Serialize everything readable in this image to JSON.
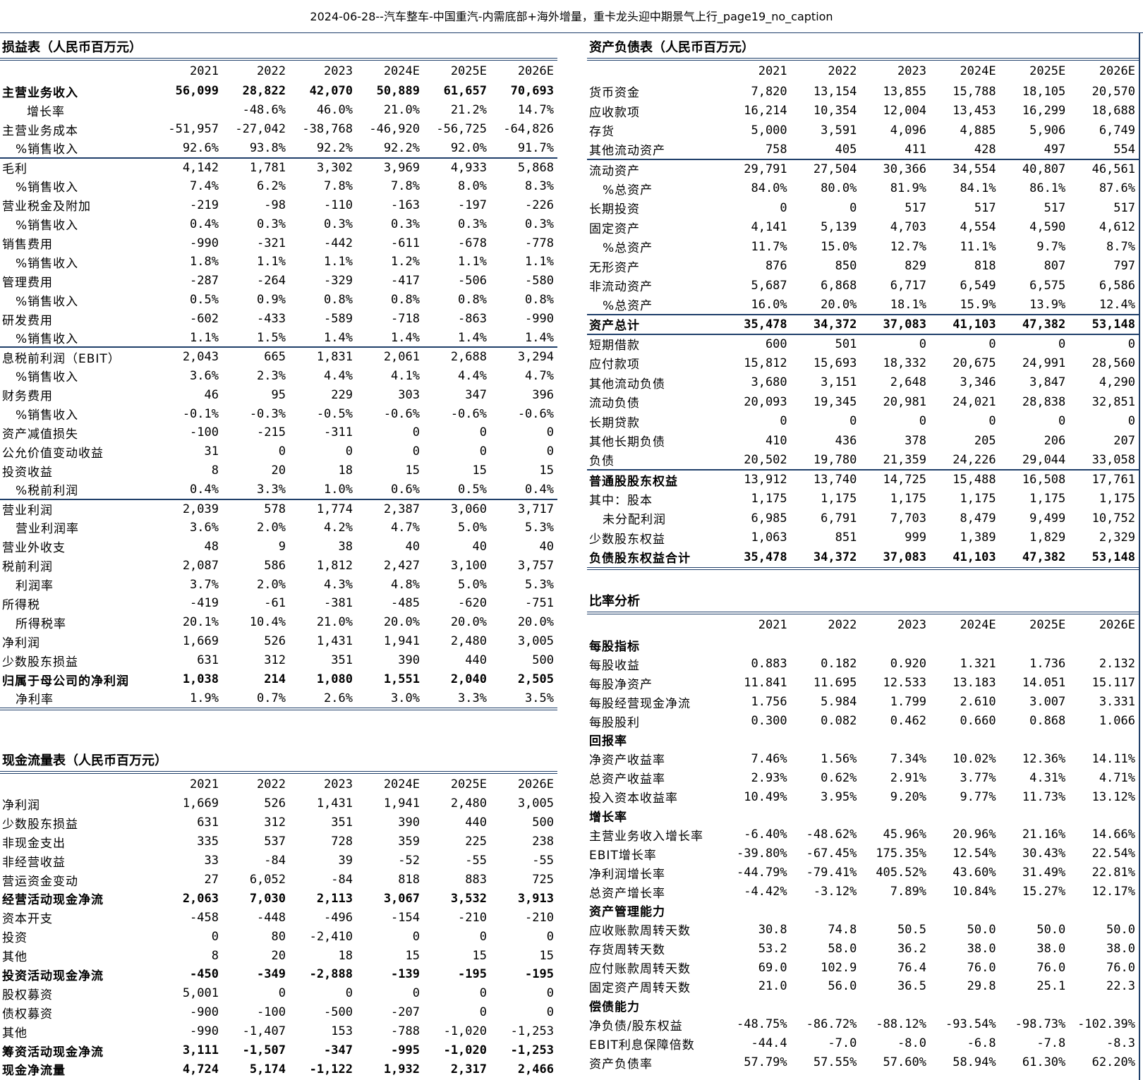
{
  "page_title": "2024-06-28--汽车整车-中国重汽-内需底部+海外增量，重卡龙头迎中期景气上行_page19_no_caption",
  "years": [
    "2021",
    "2022",
    "2023",
    "2024E",
    "2025E",
    "2026E"
  ],
  "income": {
    "title": "损益表（人民币百万元）",
    "rows": [
      {
        "label": "主营业务收入",
        "values": [
          "56,099",
          "28,822",
          "42,070",
          "50,889",
          "61,657",
          "70,693"
        ],
        "style": "b"
      },
      {
        "label": "增长率",
        "values": [
          "",
          "-48.6%",
          "46.0%",
          "21.0%",
          "21.2%",
          "14.7%"
        ],
        "style": "ii"
      },
      {
        "label": "主营业务成本",
        "values": [
          "-51,957",
          "-27,042",
          "-38,768",
          "-46,920",
          "-56,725",
          "-64,826"
        ],
        "style": ""
      },
      {
        "label": "%销售收入",
        "values": [
          "92.6%",
          "93.8%",
          "92.2%",
          "92.2%",
          "92.0%",
          "91.7%"
        ],
        "style": "i"
      },
      {
        "label": "毛利",
        "values": [
          "4,142",
          "1,781",
          "3,302",
          "3,969",
          "4,933",
          "5,868"
        ],
        "style": "sep"
      },
      {
        "label": "%销售收入",
        "values": [
          "7.4%",
          "6.2%",
          "7.8%",
          "7.8%",
          "8.0%",
          "8.3%"
        ],
        "style": "i"
      },
      {
        "label": "营业税金及附加",
        "values": [
          "-219",
          "-98",
          "-110",
          "-163",
          "-197",
          "-226"
        ],
        "style": ""
      },
      {
        "label": "%销售收入",
        "values": [
          "0.4%",
          "0.3%",
          "0.3%",
          "0.3%",
          "0.3%",
          "0.3%"
        ],
        "style": "i"
      },
      {
        "label": "销售费用",
        "values": [
          "-990",
          "-321",
          "-442",
          "-611",
          "-678",
          "-778"
        ],
        "style": ""
      },
      {
        "label": "%销售收入",
        "values": [
          "1.8%",
          "1.1%",
          "1.1%",
          "1.2%",
          "1.1%",
          "1.1%"
        ],
        "style": "i"
      },
      {
        "label": "管理费用",
        "values": [
          "-287",
          "-264",
          "-329",
          "-417",
          "-506",
          "-580"
        ],
        "style": ""
      },
      {
        "label": "%销售收入",
        "values": [
          "0.5%",
          "0.9%",
          "0.8%",
          "0.8%",
          "0.8%",
          "0.8%"
        ],
        "style": "i"
      },
      {
        "label": "研发费用",
        "values": [
          "-602",
          "-433",
          "-589",
          "-718",
          "-863",
          "-990"
        ],
        "style": ""
      },
      {
        "label": "%销售收入",
        "values": [
          "1.1%",
          "1.5%",
          "1.4%",
          "1.4%",
          "1.4%",
          "1.4%"
        ],
        "style": "i"
      },
      {
        "label": "息税前利润（EBIT）",
        "values": [
          "2,043",
          "665",
          "1,831",
          "2,061",
          "2,688",
          "3,294"
        ],
        "style": "sep"
      },
      {
        "label": "%销售收入",
        "values": [
          "3.6%",
          "2.3%",
          "4.4%",
          "4.1%",
          "4.4%",
          "4.7%"
        ],
        "style": "i"
      },
      {
        "label": "财务费用",
        "values": [
          "46",
          "95",
          "229",
          "303",
          "347",
          "396"
        ],
        "style": ""
      },
      {
        "label": "%销售收入",
        "values": [
          "-0.1%",
          "-0.3%",
          "-0.5%",
          "-0.6%",
          "-0.6%",
          "-0.6%"
        ],
        "style": "i"
      },
      {
        "label": "资产减值损失",
        "values": [
          "-100",
          "-215",
          "-311",
          "0",
          "0",
          "0"
        ],
        "style": ""
      },
      {
        "label": "公允价值变动收益",
        "values": [
          "31",
          "0",
          "0",
          "0",
          "0",
          "0"
        ],
        "style": ""
      },
      {
        "label": "投资收益",
        "values": [
          "8",
          "20",
          "18",
          "15",
          "15",
          "15"
        ],
        "style": ""
      },
      {
        "label": "%税前利润",
        "values": [
          "0.4%",
          "3.3%",
          "1.0%",
          "0.6%",
          "0.5%",
          "0.4%"
        ],
        "style": "i"
      },
      {
        "label": "营业利润",
        "values": [
          "2,039",
          "578",
          "1,774",
          "2,387",
          "3,060",
          "3,717"
        ],
        "style": "sep"
      },
      {
        "label": "营业利润率",
        "values": [
          "3.6%",
          "2.0%",
          "4.2%",
          "4.7%",
          "5.0%",
          "5.3%"
        ],
        "style": "i"
      },
      {
        "label": "营业外收支",
        "values": [
          "48",
          "9",
          "38",
          "40",
          "40",
          "40"
        ],
        "style": ""
      },
      {
        "label": "税前利润",
        "values": [
          "2,087",
          "586",
          "1,812",
          "2,427",
          "3,100",
          "3,757"
        ],
        "style": ""
      },
      {
        "label": "利润率",
        "values": [
          "3.7%",
          "2.0%",
          "4.3%",
          "4.8%",
          "5.0%",
          "5.3%"
        ],
        "style": "i"
      },
      {
        "label": "所得税",
        "values": [
          "-419",
          "-61",
          "-381",
          "-485",
          "-620",
          "-751"
        ],
        "style": ""
      },
      {
        "label": "所得税率",
        "values": [
          "20.1%",
          "10.4%",
          "21.0%",
          "20.0%",
          "20.0%",
          "20.0%"
        ],
        "style": "i"
      },
      {
        "label": "净利润",
        "values": [
          "1,669",
          "526",
          "1,431",
          "1,941",
          "2,480",
          "3,005"
        ],
        "style": ""
      },
      {
        "label": "少数股东损益",
        "values": [
          "631",
          "312",
          "351",
          "390",
          "440",
          "500"
        ],
        "style": ""
      },
      {
        "label": "归属于母公司的净利润",
        "values": [
          "1,038",
          "214",
          "1,080",
          "1,551",
          "2,040",
          "2,505"
        ],
        "style": "b"
      },
      {
        "label": "净利率",
        "values": [
          "1.9%",
          "0.7%",
          "2.6%",
          "3.0%",
          "3.3%",
          "3.5%"
        ],
        "style": "i"
      }
    ]
  },
  "cashflow": {
    "title": "现金流量表（人民币百万元）",
    "rows": [
      {
        "label": "净利润",
        "values": [
          "1,669",
          "526",
          "1,431",
          "1,941",
          "2,480",
          "3,005"
        ],
        "style": ""
      },
      {
        "label": "少数股东损益",
        "values": [
          "631",
          "312",
          "351",
          "390",
          "440",
          "500"
        ],
        "style": ""
      },
      {
        "label": "非现金支出",
        "values": [
          "335",
          "537",
          "728",
          "359",
          "225",
          "238"
        ],
        "style": ""
      },
      {
        "label": "非经营收益",
        "values": [
          "33",
          "-84",
          "39",
          "-52",
          "-55",
          "-55"
        ],
        "style": ""
      },
      {
        "label": "营运资金变动",
        "values": [
          "27",
          "6,052",
          "-84",
          "818",
          "883",
          "725"
        ],
        "style": ""
      },
      {
        "label": "经营活动现金净流",
        "values": [
          "2,063",
          "7,030",
          "2,113",
          "3,067",
          "3,532",
          "3,913"
        ],
        "style": "b"
      },
      {
        "label": "资本开支",
        "values": [
          "-458",
          "-448",
          "-496",
          "-154",
          "-210",
          "-210"
        ],
        "style": ""
      },
      {
        "label": "投资",
        "values": [
          "0",
          "80",
          "-2,410",
          "0",
          "0",
          "0"
        ],
        "style": ""
      },
      {
        "label": "其他",
        "values": [
          "8",
          "20",
          "18",
          "15",
          "15",
          "15"
        ],
        "style": ""
      },
      {
        "label": "投资活动现金净流",
        "values": [
          "-450",
          "-349",
          "-2,888",
          "-139",
          "-195",
          "-195"
        ],
        "style": "b"
      },
      {
        "label": "股权募资",
        "values": [
          "5,001",
          "0",
          "0",
          "0",
          "0",
          "0"
        ],
        "style": ""
      },
      {
        "label": "债权募资",
        "values": [
          "-900",
          "-100",
          "-500",
          "-207",
          "0",
          "0"
        ],
        "style": ""
      },
      {
        "label": "其他",
        "values": [
          "-990",
          "-1,407",
          "153",
          "-788",
          "-1,020",
          "-1,253"
        ],
        "style": ""
      },
      {
        "label": "筹资活动现金净流",
        "values": [
          "3,111",
          "-1,507",
          "-347",
          "-995",
          "-1,020",
          "-1,253"
        ],
        "style": "b"
      },
      {
        "label": "现金净流量",
        "values": [
          "4,724",
          "5,174",
          "-1,122",
          "1,932",
          "2,317",
          "2,466"
        ],
        "style": "b"
      }
    ]
  },
  "balance": {
    "title": "资产负债表（人民币百万元）",
    "rows": [
      {
        "label": "货币资金",
        "values": [
          "7,820",
          "13,154",
          "13,855",
          "15,788",
          "18,105",
          "20,570"
        ],
        "style": ""
      },
      {
        "label": "应收款项",
        "values": [
          "16,214",
          "10,354",
          "12,004",
          "13,453",
          "16,299",
          "18,688"
        ],
        "style": ""
      },
      {
        "label": "存货",
        "values": [
          "5,000",
          "3,591",
          "4,096",
          "4,885",
          "5,906",
          "6,749"
        ],
        "style": ""
      },
      {
        "label": "其他流动资产",
        "values": [
          "758",
          "405",
          "411",
          "428",
          "497",
          "554"
        ],
        "style": ""
      },
      {
        "label": "流动资产",
        "values": [
          "29,791",
          "27,504",
          "30,366",
          "34,554",
          "40,807",
          "46,561"
        ],
        "style": "sep"
      },
      {
        "label": "%总资产",
        "values": [
          "84.0%",
          "80.0%",
          "81.9%",
          "84.1%",
          "86.1%",
          "87.6%"
        ],
        "style": "i"
      },
      {
        "label": "长期投资",
        "values": [
          "0",
          "0",
          "517",
          "517",
          "517",
          "517"
        ],
        "style": ""
      },
      {
        "label": "固定资产",
        "values": [
          "4,141",
          "5,139",
          "4,703",
          "4,554",
          "4,590",
          "4,612"
        ],
        "style": ""
      },
      {
        "label": "%总资产",
        "values": [
          "11.7%",
          "15.0%",
          "12.7%",
          "11.1%",
          "9.7%",
          "8.7%"
        ],
        "style": "i"
      },
      {
        "label": "无形资产",
        "values": [
          "876",
          "850",
          "829",
          "818",
          "807",
          "797"
        ],
        "style": ""
      },
      {
        "label": "非流动资产",
        "values": [
          "5,687",
          "6,868",
          "6,717",
          "6,549",
          "6,575",
          "6,586"
        ],
        "style": ""
      },
      {
        "label": "%总资产",
        "values": [
          "16.0%",
          "20.0%",
          "18.1%",
          "15.9%",
          "13.9%",
          "12.4%"
        ],
        "style": "i"
      },
      {
        "label": "资产总计",
        "values": [
          "35,478",
          "34,372",
          "37,083",
          "41,103",
          "47,382",
          "53,148"
        ],
        "style": "b sep"
      },
      {
        "label": "短期借款",
        "values": [
          "600",
          "501",
          "0",
          "0",
          "0",
          "0"
        ],
        "style": "sep"
      },
      {
        "label": "应付款项",
        "values": [
          "15,812",
          "15,693",
          "18,332",
          "20,675",
          "24,991",
          "28,560"
        ],
        "style": ""
      },
      {
        "label": "其他流动负债",
        "values": [
          "3,680",
          "3,151",
          "2,648",
          "3,346",
          "3,847",
          "4,290"
        ],
        "style": ""
      },
      {
        "label": "流动负债",
        "values": [
          "20,093",
          "19,345",
          "20,981",
          "24,021",
          "28,838",
          "32,851"
        ],
        "style": ""
      },
      {
        "label": "长期贷款",
        "values": [
          "0",
          "0",
          "0",
          "0",
          "0",
          "0"
        ],
        "style": ""
      },
      {
        "label": "其他长期负债",
        "values": [
          "410",
          "436",
          "378",
          "205",
          "206",
          "207"
        ],
        "style": ""
      },
      {
        "label": "负债",
        "values": [
          "20,502",
          "19,780",
          "21,359",
          "24,226",
          "29,044",
          "33,058"
        ],
        "style": ""
      },
      {
        "label": "普通股股东权益",
        "values": [
          "13,912",
          "13,740",
          "14,725",
          "15,488",
          "16,508",
          "17,761"
        ],
        "style": "grp sep"
      },
      {
        "label": "其中：股本",
        "values": [
          "1,175",
          "1,175",
          "1,175",
          "1,175",
          "1,175",
          "1,175"
        ],
        "style": ""
      },
      {
        "label": "未分配利润",
        "values": [
          "6,985",
          "6,791",
          "7,703",
          "8,479",
          "9,499",
          "10,752"
        ],
        "style": "i"
      },
      {
        "label": "少数股东权益",
        "values": [
          "1,063",
          "851",
          "999",
          "1,389",
          "1,829",
          "2,329"
        ],
        "style": ""
      },
      {
        "label": "负债股东权益合计",
        "values": [
          "35,478",
          "34,372",
          "37,083",
          "41,103",
          "47,382",
          "53,148"
        ],
        "style": "b"
      }
    ]
  },
  "ratios": {
    "title": "比率分析",
    "rows": [
      {
        "label": "每股指标",
        "values": [
          "",
          "",
          "",
          "",
          "",
          ""
        ],
        "style": "grp"
      },
      {
        "label": "每股收益",
        "values": [
          "0.883",
          "0.182",
          "0.920",
          "1.321",
          "1.736",
          "2.132"
        ],
        "style": ""
      },
      {
        "label": "每股净资产",
        "values": [
          "11.841",
          "11.695",
          "12.533",
          "13.183",
          "14.051",
          "15.117"
        ],
        "style": ""
      },
      {
        "label": "每股经营现金净流",
        "values": [
          "1.756",
          "5.984",
          "1.799",
          "2.610",
          "3.007",
          "3.331"
        ],
        "style": ""
      },
      {
        "label": "每股股利",
        "values": [
          "0.300",
          "0.082",
          "0.462",
          "0.660",
          "0.868",
          "1.066"
        ],
        "style": ""
      },
      {
        "label": "回报率",
        "values": [
          "",
          "",
          "",
          "",
          "",
          ""
        ],
        "style": "grp"
      },
      {
        "label": "净资产收益率",
        "values": [
          "7.46%",
          "1.56%",
          "7.34%",
          "10.02%",
          "12.36%",
          "14.11%"
        ],
        "style": ""
      },
      {
        "label": "总资产收益率",
        "values": [
          "2.93%",
          "0.62%",
          "2.91%",
          "3.77%",
          "4.31%",
          "4.71%"
        ],
        "style": ""
      },
      {
        "label": "投入资本收益率",
        "values": [
          "10.49%",
          "3.95%",
          "9.20%",
          "9.77%",
          "11.73%",
          "13.12%"
        ],
        "style": ""
      },
      {
        "label": "增长率",
        "values": [
          "",
          "",
          "",
          "",
          "",
          ""
        ],
        "style": "grp"
      },
      {
        "label": "主营业务收入增长率",
        "values": [
          "-6.40%",
          "-48.62%",
          "45.96%",
          "20.96%",
          "21.16%",
          "14.66%"
        ],
        "style": ""
      },
      {
        "label": "EBIT增长率",
        "values": [
          "-39.80%",
          "-67.45%",
          "175.35%",
          "12.54%",
          "30.43%",
          "22.54%"
        ],
        "style": ""
      },
      {
        "label": "净利润增长率",
        "values": [
          "-44.79%",
          "-79.41%",
          "405.52%",
          "43.60%",
          "31.49%",
          "22.81%"
        ],
        "style": ""
      },
      {
        "label": "总资产增长率",
        "values": [
          "-4.42%",
          "-3.12%",
          "7.89%",
          "10.84%",
          "15.27%",
          "12.17%"
        ],
        "style": ""
      },
      {
        "label": "资产管理能力",
        "values": [
          "",
          "",
          "",
          "",
          "",
          ""
        ],
        "style": "grp"
      },
      {
        "label": "应收账款周转天数",
        "values": [
          "30.8",
          "74.8",
          "50.5",
          "50.0",
          "50.0",
          "50.0"
        ],
        "style": ""
      },
      {
        "label": "存货周转天数",
        "values": [
          "53.2",
          "58.0",
          "36.2",
          "38.0",
          "38.0",
          "38.0"
        ],
        "style": ""
      },
      {
        "label": "应付账款周转天数",
        "values": [
          "69.0",
          "102.9",
          "76.4",
          "76.0",
          "76.0",
          "76.0"
        ],
        "style": ""
      },
      {
        "label": "固定资产周转天数",
        "values": [
          "21.0",
          "56.0",
          "36.5",
          "29.8",
          "25.1",
          "22.3"
        ],
        "style": ""
      },
      {
        "label": "偿债能力",
        "values": [
          "",
          "",
          "",
          "",
          "",
          ""
        ],
        "style": "grp"
      },
      {
        "label": "净负债/股东权益",
        "values": [
          "-48.75%",
          "-86.72%",
          "-88.12%",
          "-93.54%",
          "-98.73%",
          "-102.39%"
        ],
        "style": ""
      },
      {
        "label": "EBIT利息保障倍数",
        "values": [
          "-44.4",
          "-7.0",
          "-8.0",
          "-6.8",
          "-7.8",
          "-8.3"
        ],
        "style": ""
      },
      {
        "label": "资产负债率",
        "values": [
          "57.79%",
          "57.55%",
          "57.60%",
          "58.94%",
          "61.30%",
          "62.20%"
        ],
        "style": ""
      }
    ]
  }
}
